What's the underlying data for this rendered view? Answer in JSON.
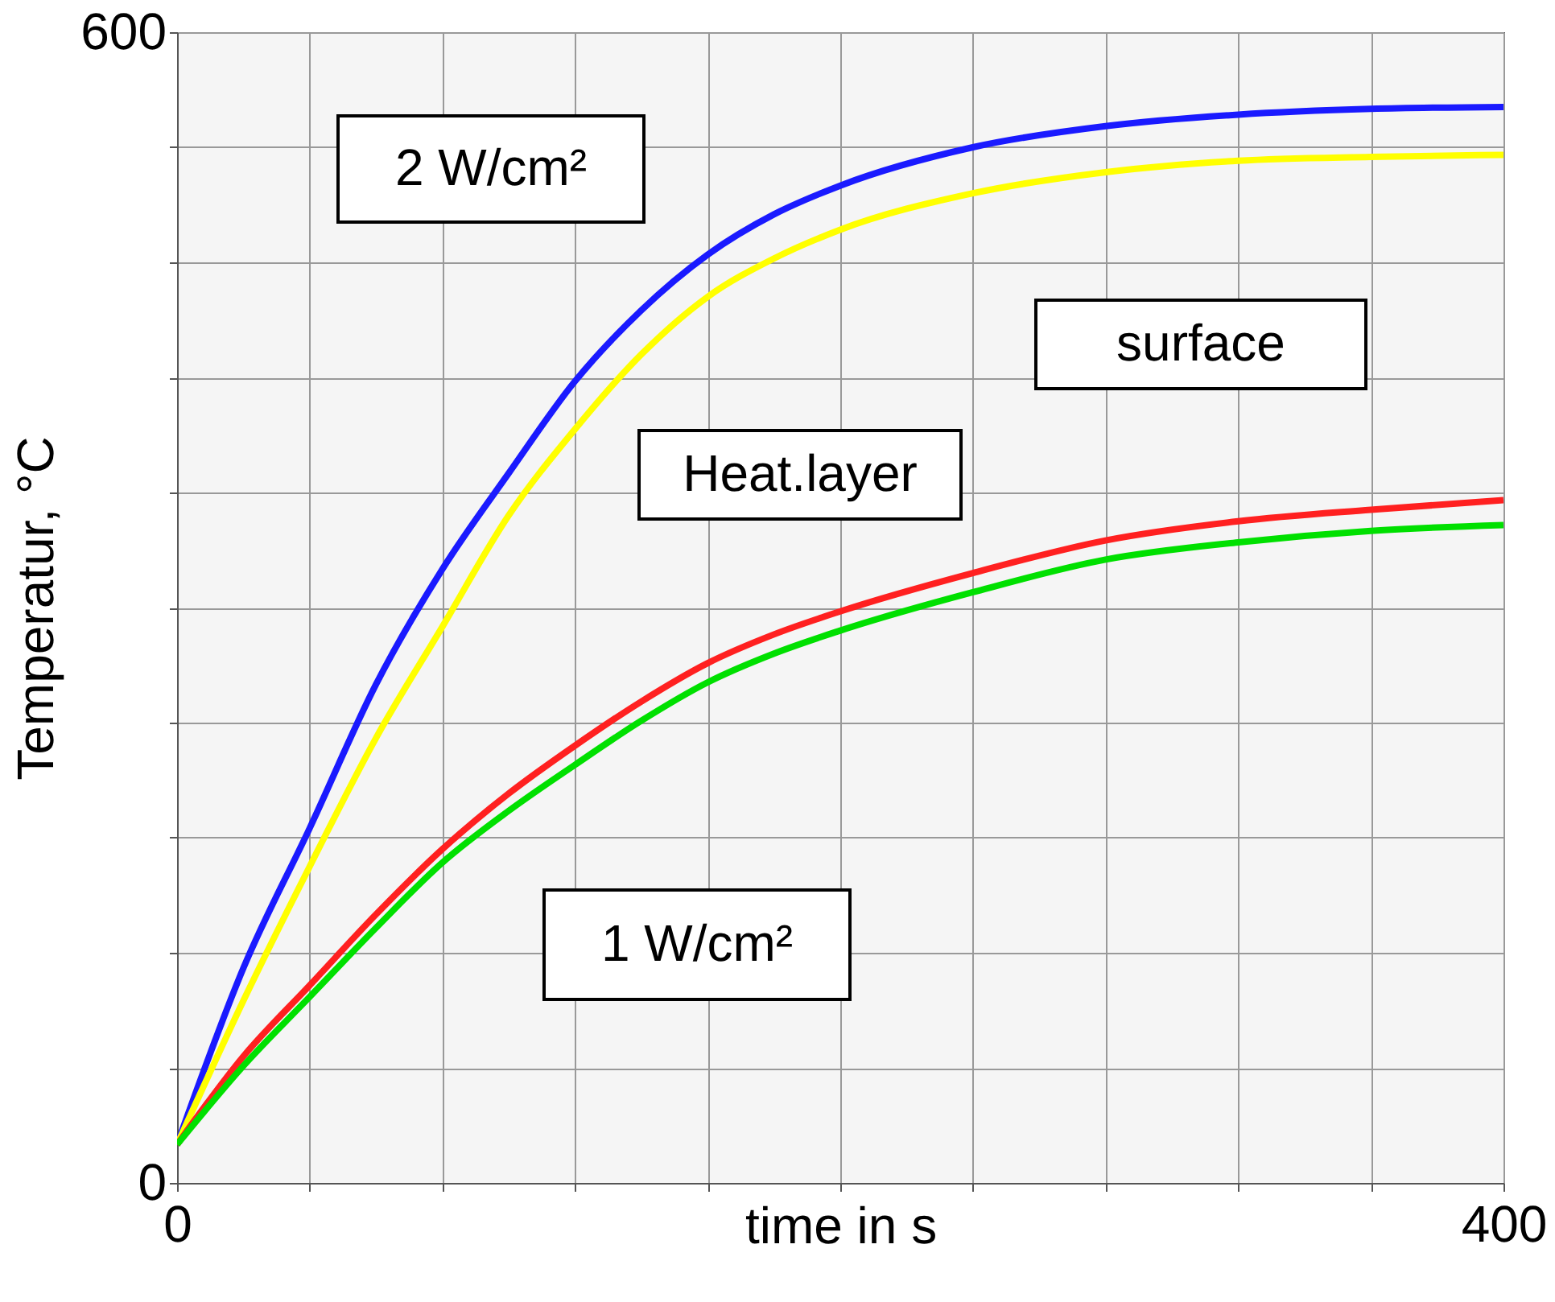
{
  "chart_data": {
    "type": "line",
    "xlabel": "time in s",
    "ylabel": "Temperatur, °C",
    "xlim": [
      0,
      400
    ],
    "ylim": [
      0,
      600
    ],
    "xticks": [
      0,
      {
        "value": 40,
        "label": null
      },
      {
        "value": 80,
        "label": null
      },
      {
        "value": 120,
        "label": null
      },
      {
        "value": 160,
        "label": null
      },
      {
        "value": 200,
        "label": null
      },
      {
        "value": 240,
        "label": null
      },
      {
        "value": 280,
        "label": null
      },
      {
        "value": 320,
        "label": null
      },
      {
        "value": 360,
        "label": null
      },
      400
    ],
    "yticks": [
      0,
      {
        "value": 60,
        "label": null
      },
      {
        "value": 120,
        "label": null
      },
      {
        "value": 180,
        "label": null
      },
      {
        "value": 240,
        "label": null
      },
      {
        "value": 300,
        "label": null
      },
      {
        "value": 360,
        "label": null
      },
      {
        "value": 420,
        "label": null
      },
      {
        "value": 480,
        "label": null
      },
      {
        "value": 540,
        "label": null
      },
      600
    ],
    "grid": true,
    "line_style": "solid",
    "x": [
      0,
      20,
      40,
      60,
      80,
      100,
      120,
      140,
      160,
      180,
      200,
      240,
      280,
      320,
      360,
      400
    ],
    "series": [
      {
        "color": "#1a1aff",
        "values": [
          20,
          112,
          185,
          260,
          320,
          370,
          418,
          455,
          484,
          505,
          520,
          540,
          551,
          557,
          560,
          561
        ]
      },
      {
        "color": "#ffff00",
        "values": [
          20,
          95,
          165,
          232,
          290,
          348,
          393,
          432,
          462,
          482,
          497,
          516,
          527,
          533,
          535,
          536
        ]
      },
      {
        "color": "#ff2020",
        "values": [
          20,
          66,
          103,
          140,
          174,
          203,
          228,
          251,
          271,
          286,
          298,
          318,
          335,
          345,
          351,
          356
        ]
      },
      {
        "color": "#00e000",
        "values": [
          20,
          61,
          97,
          133,
          167,
          194,
          218,
          241,
          261,
          276,
          288,
          308,
          325,
          334,
          340,
          343
        ]
      }
    ],
    "annotations": [
      "2 W/cm²",
      "Heat.layer",
      "surface",
      "1 W/cm²"
    ]
  }
}
